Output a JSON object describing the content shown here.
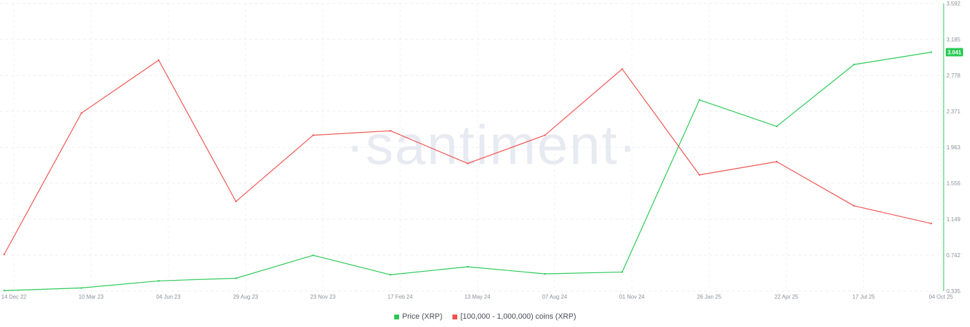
{
  "chart_data": {
    "type": "line",
    "watermark": "·santiment·",
    "x": [
      "14 Dec 22",
      "10 Mar 23",
      "04 Jun 23",
      "29 Aug 23",
      "23 Nov 23",
      "17 Feb 24",
      "13 May 24",
      "07 Aug 24",
      "01 Nov 24",
      "26 Jan 25",
      "22 Apr 25",
      "17 Jul 25",
      "04 Oct 25"
    ],
    "x_ticks": [
      "14 Dec 22",
      "10 Mar 23",
      "04 Jun 23",
      "29 Aug 23",
      "23 Nov 23",
      "17 Feb 24",
      "13 May 24",
      "07 Aug 24",
      "01 Nov 24",
      "26 Jan 25",
      "22 Apr 25",
      "17 Jul 25",
      "04 Oct 25"
    ],
    "y_ticks": [
      "3.592",
      "3.185",
      "2.778",
      "2.371",
      "1.963",
      "1.556",
      "1.149",
      "0.742",
      "0.335"
    ],
    "ylim": [
      0.335,
      3.592
    ],
    "grid": true,
    "legend_position": "bottom-center",
    "series": [
      {
        "name": "Price (XRP)",
        "color": "#26c953",
        "axis": "right",
        "values": [
          0.34,
          0.37,
          0.45,
          0.48,
          0.74,
          0.52,
          0.61,
          0.53,
          0.55,
          2.5,
          2.2,
          2.9,
          3.04
        ],
        "last_value_label": "3.041"
      },
      {
        "name": "[100,000  - 1,000,000) coins (XRP)",
        "color": "#f0514f",
        "axis": "hidden",
        "values": [
          0.75,
          2.35,
          2.95,
          1.35,
          2.1,
          2.15,
          1.78,
          2.1,
          2.85,
          1.65,
          1.8,
          1.3,
          1.1
        ]
      }
    ]
  }
}
